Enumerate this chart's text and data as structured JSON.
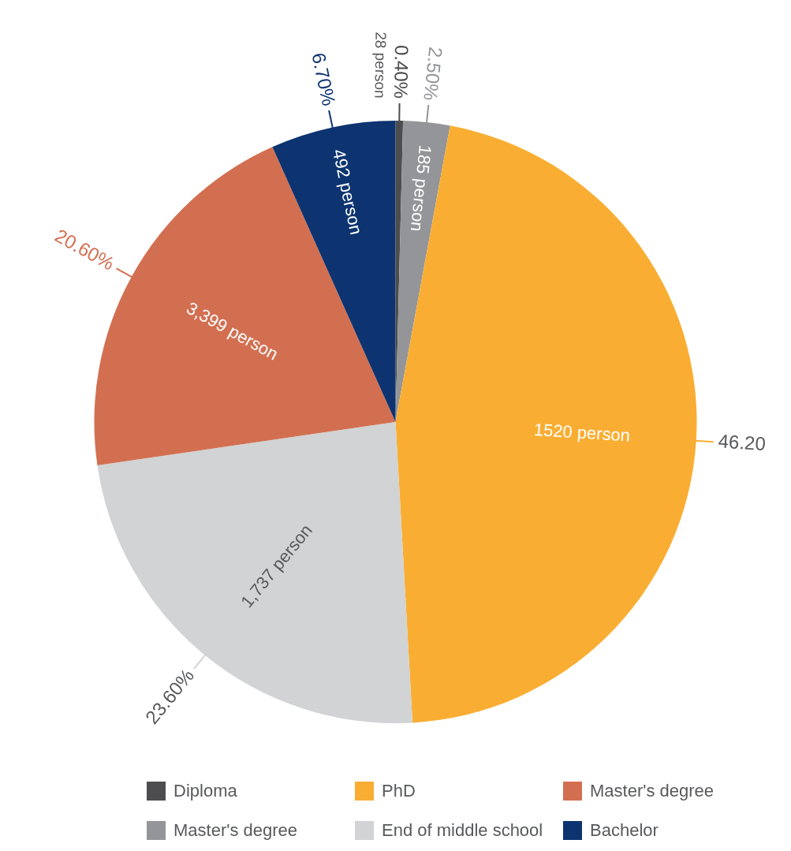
{
  "chart_data": {
    "type": "pie",
    "categories": [
      "Diploma",
      "Master's degree",
      "PhD",
      "End of middle school",
      "Master's degree",
      "Bachelor"
    ],
    "values": [
      0.4,
      2.5,
      46.2,
      23.6,
      20.6,
      6.7
    ],
    "colors": [
      "#4d4d4f",
      "#939598",
      "#f9ae33",
      "#d1d3d4",
      "#d36f51",
      "#0d3470"
    ],
    "value_labels": [
      "0.40%",
      "2.50%",
      "46.20",
      "23.60%",
      "20.60%",
      "6.70%"
    ],
    "annotations": [
      "28 person",
      "185 person",
      "1520 person",
      "1,737 person",
      "3,399 person",
      "492 person"
    ],
    "legend": "bottom"
  }
}
